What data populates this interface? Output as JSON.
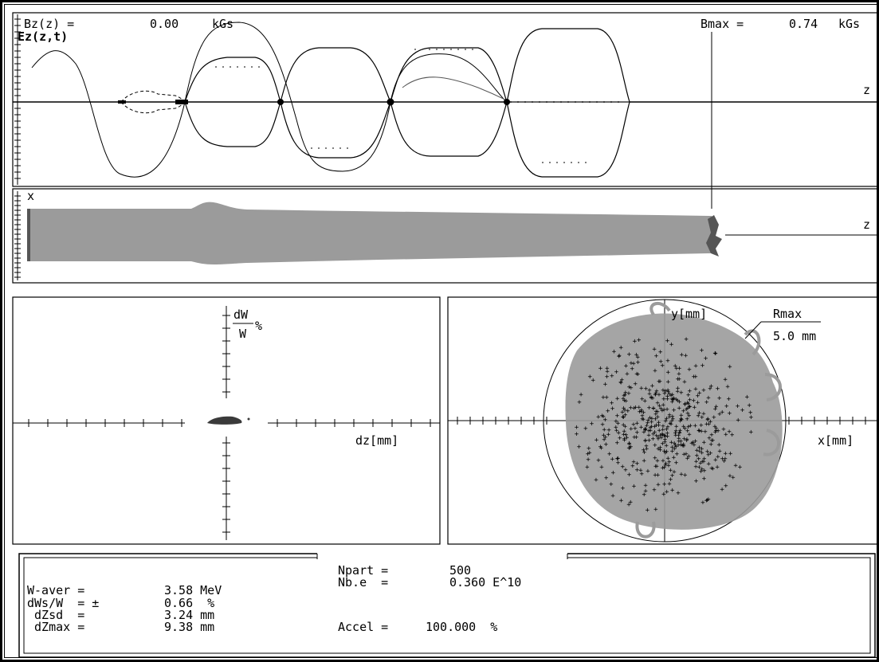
{
  "colors": {
    "frame": "#000000",
    "beam": "#9b9b9b",
    "beam_dark": "#555555",
    "particle": "#3a3a3a"
  },
  "field_panel": {
    "bz_label": "Bz(z) =",
    "bz_value": "0.00",
    "bz_unit": "kGs",
    "ez_label": "Ez(z,t)",
    "bmax_label": "Bmax =",
    "bmax_value": "0.74",
    "bmax_unit": "kGs",
    "z_axis_label": "z"
  },
  "envelope_panel": {
    "x_axis_label": "x",
    "z_axis_label": "z"
  },
  "phase_panel": {
    "dw_label": "dW",
    "w_label": "W",
    "percent_label": "%",
    "dz_label": "dz[mm]"
  },
  "xy_panel": {
    "y_label": "y[mm]",
    "x_label": "x[mm]",
    "rmax_label": "Rmax",
    "rmax_value": "5.0 mm"
  },
  "stats": {
    "w_aver": {
      "label": "W-aver =",
      "value": "3.58 MeV"
    },
    "dws_w": {
      "label": "dWs/W  = ±",
      "value": "0.66  %"
    },
    "dzsd": {
      "label": " dZsd  =",
      "value": "3.24 mm"
    },
    "dzmax": {
      "label": " dZmax =",
      "value": "9.38 mm"
    },
    "npart": {
      "label": "Npart =",
      "value": "500"
    },
    "nbe": {
      "label": "Nb.e  =",
      "value": "0.360 E^10"
    },
    "accel": {
      "label": "Accel =",
      "value": "100.000  %"
    }
  }
}
